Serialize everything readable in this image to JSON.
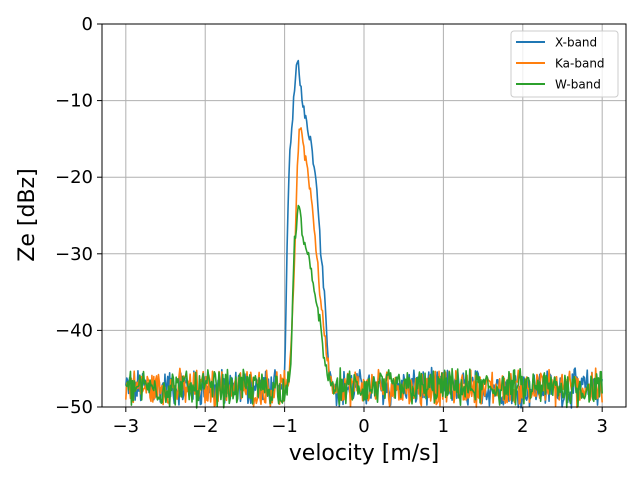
{
  "chart_data": {
    "type": "line",
    "xlabel": "velocity [m/s]",
    "ylabel": "Ze [dBz]",
    "xlim": [
      -3.3,
      3.3
    ],
    "ylim": [
      -50,
      0
    ],
    "xticks": [
      -3,
      -2,
      -1,
      0,
      1,
      2,
      3
    ],
    "xtick_labels": [
      "−3",
      "−2",
      "−1",
      "0",
      "1",
      "2",
      "3"
    ],
    "yticks": [
      0,
      -10,
      -20,
      -30,
      -40,
      -50
    ],
    "ytick_labels": [
      "0",
      "−10",
      "−20",
      "−30",
      "−40",
      "−50"
    ],
    "grid": true,
    "legend_position": "top-right",
    "noise_floor": -47.5,
    "series": [
      {
        "name": "X-band",
        "color": "#1f77b4",
        "profile": [
          [
            -1.1,
            -47.5
          ],
          [
            -1.05,
            -47.5
          ],
          [
            -1.0,
            -47
          ],
          [
            -0.98,
            -35
          ],
          [
            -0.95,
            -20
          ],
          [
            -0.92,
            -15
          ],
          [
            -0.9,
            -12
          ],
          [
            -0.87,
            -8
          ],
          [
            -0.85,
            -6
          ],
          [
            -0.83,
            -5
          ],
          [
            -0.8,
            -8
          ],
          [
            -0.77,
            -10
          ],
          [
            -0.75,
            -12
          ],
          [
            -0.72,
            -13
          ],
          [
            -0.7,
            -14
          ],
          [
            -0.67,
            -15
          ],
          [
            -0.65,
            -17
          ],
          [
            -0.6,
            -20
          ],
          [
            -0.57,
            -25
          ],
          [
            -0.55,
            -29
          ],
          [
            -0.5,
            -35
          ],
          [
            -0.47,
            -40
          ],
          [
            -0.44,
            -45
          ],
          [
            -0.4,
            -47.5
          ],
          [
            -0.35,
            -47.5
          ]
        ]
      },
      {
        "name": "Ka-band",
        "color": "#ff7f0e",
        "profile": [
          [
            -1.0,
            -47.5
          ],
          [
            -0.95,
            -47
          ],
          [
            -0.92,
            -43
          ],
          [
            -0.88,
            -33
          ],
          [
            -0.85,
            -22
          ],
          [
            -0.82,
            -14
          ],
          [
            -0.8,
            -13
          ],
          [
            -0.77,
            -15
          ],
          [
            -0.75,
            -17
          ],
          [
            -0.72,
            -18
          ],
          [
            -0.7,
            -20
          ],
          [
            -0.67,
            -22
          ],
          [
            -0.65,
            -24
          ],
          [
            -0.62,
            -27
          ],
          [
            -0.6,
            -30
          ],
          [
            -0.57,
            -33
          ],
          [
            -0.55,
            -36
          ],
          [
            -0.5,
            -40
          ],
          [
            -0.47,
            -43
          ],
          [
            -0.43,
            -46
          ],
          [
            -0.4,
            -47.5
          ],
          [
            -0.35,
            -47.5
          ]
        ]
      },
      {
        "name": "W-band",
        "color": "#2ca02c",
        "profile": [
          [
            -0.95,
            -47.5
          ],
          [
            -0.92,
            -44
          ],
          [
            -0.9,
            -36
          ],
          [
            -0.88,
            -29
          ],
          [
            -0.85,
            -26
          ],
          [
            -0.83,
            -24
          ],
          [
            -0.8,
            -25
          ],
          [
            -0.78,
            -27
          ],
          [
            -0.75,
            -29
          ],
          [
            -0.72,
            -30
          ],
          [
            -0.7,
            -30.5
          ],
          [
            -0.67,
            -32
          ],
          [
            -0.65,
            -34
          ],
          [
            -0.6,
            -36
          ],
          [
            -0.57,
            -38
          ],
          [
            -0.55,
            -39
          ],
          [
            -0.52,
            -42
          ],
          [
            -0.5,
            -44
          ],
          [
            -0.45,
            -46
          ],
          [
            -0.4,
            -47.5
          ],
          [
            -0.35,
            -47.5
          ]
        ]
      }
    ]
  }
}
